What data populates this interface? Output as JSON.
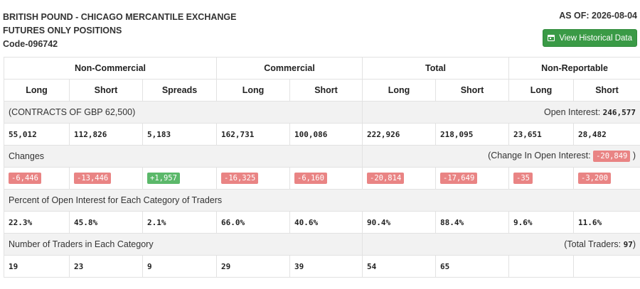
{
  "header": {
    "title_line1": "BRITISH POUND - CHICAGO MERCANTILE EXCHANGE",
    "title_line2": "FUTURES ONLY POSITIONS",
    "title_line3": "Code-096742",
    "as_of": "AS OF: 2026-08-04",
    "history_button": "View Historical Data",
    "history_icon": "calendar-icon"
  },
  "groups": [
    "Non-Commercial",
    "Commercial",
    "Total",
    "Non-Reportable"
  ],
  "columns": [
    "Long",
    "Short",
    "Spreads",
    "Long",
    "Short",
    "Long",
    "Short",
    "Long",
    "Short"
  ],
  "contracts": {
    "label": "(CONTRACTS OF GBP 62,500)",
    "oi_label": "Open Interest: ",
    "oi_value": "246,577",
    "values": [
      "55,012",
      "112,826",
      "5,183",
      "162,731",
      "100,086",
      "222,926",
      "218,095",
      "23,651",
      "28,482"
    ]
  },
  "changes": {
    "label": "Changes",
    "oi_label": "(Change In Open Interest: ",
    "oi_value": "-20,849",
    "oi_close": " )",
    "values": [
      "-6,446",
      "-13,446",
      "+1,957",
      "-16,325",
      "-6,160",
      "-20,814",
      "-17,649",
      "-35",
      "-3,200"
    ]
  },
  "percent": {
    "label": "Percent of Open Interest for Each Category of Traders",
    "values": [
      "22.3%",
      "45.8%",
      "2.1%",
      "66.0%",
      "40.6%",
      "90.4%",
      "88.4%",
      "9.6%",
      "11.6%"
    ]
  },
  "traders": {
    "label": "Number of Traders in Each Category",
    "total_label": "(Total Traders: ",
    "total_value": "97",
    "total_close": ")",
    "values": [
      "19",
      "23",
      "9",
      "29",
      "39",
      "54",
      "65",
      "",
      ""
    ]
  },
  "colors": {
    "negative": "#e98484",
    "positive": "#5bb86a",
    "button": "#3a9a46"
  }
}
